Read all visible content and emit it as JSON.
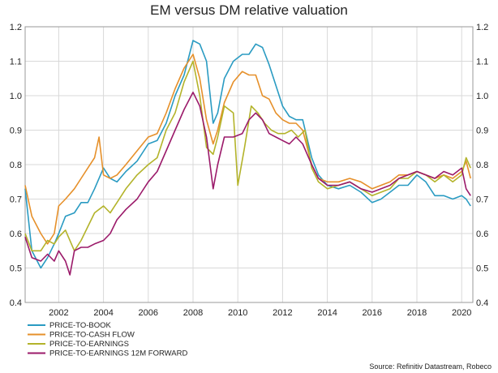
{
  "chart_data": {
    "type": "line",
    "title": "EM versus DM relative valuation",
    "xlabel": "",
    "ylabel": "",
    "xlim": [
      2000.5,
      2020.5
    ],
    "ylim": [
      0.4,
      1.2
    ],
    "x_ticks": [
      2002,
      2004,
      2006,
      2008,
      2010,
      2012,
      2014,
      2016,
      2018,
      2020
    ],
    "y_ticks": [
      0.4,
      0.5,
      0.6,
      0.7,
      0.8,
      0.9,
      1.0,
      1.1,
      1.2
    ],
    "y_axis_both_sides": true,
    "grid": true,
    "legend_position": "bottom-left",
    "source": "Source: Refinitiv Datastream, Robeco",
    "series": [
      {
        "name": "PRICE-TO-BOOK",
        "color": "#2a9bc2",
        "points": [
          [
            2000.5,
            0.73
          ],
          [
            2000.8,
            0.55
          ],
          [
            2001.2,
            0.5
          ],
          [
            2001.5,
            0.53
          ],
          [
            2001.8,
            0.57
          ],
          [
            2002.0,
            0.6
          ],
          [
            2002.3,
            0.65
          ],
          [
            2002.7,
            0.66
          ],
          [
            2003.0,
            0.69
          ],
          [
            2003.3,
            0.69
          ],
          [
            2003.6,
            0.73
          ],
          [
            2004.0,
            0.79
          ],
          [
            2004.3,
            0.76
          ],
          [
            2004.6,
            0.75
          ],
          [
            2005.0,
            0.78
          ],
          [
            2005.5,
            0.81
          ],
          [
            2006.0,
            0.86
          ],
          [
            2006.4,
            0.87
          ],
          [
            2006.8,
            0.92
          ],
          [
            2007.2,
            1.0
          ],
          [
            2007.6,
            1.06
          ],
          [
            2008.0,
            1.16
          ],
          [
            2008.3,
            1.15
          ],
          [
            2008.6,
            1.1
          ],
          [
            2008.9,
            0.92
          ],
          [
            2009.1,
            0.95
          ],
          [
            2009.4,
            1.05
          ],
          [
            2009.8,
            1.1
          ],
          [
            2010.2,
            1.12
          ],
          [
            2010.5,
            1.12
          ],
          [
            2010.8,
            1.15
          ],
          [
            2011.1,
            1.14
          ],
          [
            2011.4,
            1.09
          ],
          [
            2011.7,
            1.03
          ],
          [
            2012.0,
            0.97
          ],
          [
            2012.3,
            0.94
          ],
          [
            2012.6,
            0.93
          ],
          [
            2012.9,
            0.93
          ],
          [
            2013.3,
            0.82
          ],
          [
            2013.6,
            0.77
          ],
          [
            2014.0,
            0.74
          ],
          [
            2014.5,
            0.73
          ],
          [
            2015.0,
            0.74
          ],
          [
            2015.5,
            0.72
          ],
          [
            2016.0,
            0.69
          ],
          [
            2016.4,
            0.7
          ],
          [
            2016.8,
            0.72
          ],
          [
            2017.2,
            0.74
          ],
          [
            2017.6,
            0.74
          ],
          [
            2018.0,
            0.77
          ],
          [
            2018.4,
            0.75
          ],
          [
            2018.8,
            0.71
          ],
          [
            2019.2,
            0.71
          ],
          [
            2019.6,
            0.7
          ],
          [
            2020.0,
            0.71
          ],
          [
            2020.2,
            0.7
          ],
          [
            2020.4,
            0.68
          ]
        ]
      },
      {
        "name": "PRICE-TO-CASH FLOW",
        "color": "#e6902a",
        "points": [
          [
            2000.5,
            0.74
          ],
          [
            2000.8,
            0.65
          ],
          [
            2001.2,
            0.6
          ],
          [
            2001.5,
            0.57
          ],
          [
            2001.8,
            0.6
          ],
          [
            2002.0,
            0.68
          ],
          [
            2002.3,
            0.7
          ],
          [
            2002.7,
            0.73
          ],
          [
            2003.0,
            0.76
          ],
          [
            2003.3,
            0.79
          ],
          [
            2003.6,
            0.82
          ],
          [
            2003.8,
            0.88
          ],
          [
            2004.0,
            0.77
          ],
          [
            2004.3,
            0.76
          ],
          [
            2004.6,
            0.77
          ],
          [
            2005.0,
            0.8
          ],
          [
            2005.5,
            0.84
          ],
          [
            2006.0,
            0.88
          ],
          [
            2006.4,
            0.89
          ],
          [
            2006.8,
            0.95
          ],
          [
            2007.2,
            1.02
          ],
          [
            2007.6,
            1.08
          ],
          [
            2008.0,
            1.12
          ],
          [
            2008.3,
            1.05
          ],
          [
            2008.6,
            0.93
          ],
          [
            2008.9,
            0.86
          ],
          [
            2009.1,
            0.9
          ],
          [
            2009.4,
            0.98
          ],
          [
            2009.8,
            1.04
          ],
          [
            2010.2,
            1.07
          ],
          [
            2010.5,
            1.06
          ],
          [
            2010.8,
            1.06
          ],
          [
            2011.1,
            1.0
          ],
          [
            2011.4,
            0.99
          ],
          [
            2011.7,
            0.95
          ],
          [
            2012.0,
            0.93
          ],
          [
            2012.3,
            0.92
          ],
          [
            2012.6,
            0.92
          ],
          [
            2012.9,
            0.9
          ],
          [
            2013.3,
            0.8
          ],
          [
            2013.6,
            0.76
          ],
          [
            2014.0,
            0.75
          ],
          [
            2014.5,
            0.75
          ],
          [
            2015.0,
            0.76
          ],
          [
            2015.5,
            0.75
          ],
          [
            2016.0,
            0.73
          ],
          [
            2016.4,
            0.74
          ],
          [
            2016.8,
            0.75
          ],
          [
            2017.2,
            0.77
          ],
          [
            2017.6,
            0.77
          ],
          [
            2018.0,
            0.78
          ],
          [
            2018.4,
            0.77
          ],
          [
            2018.8,
            0.76
          ],
          [
            2019.2,
            0.77
          ],
          [
            2019.6,
            0.76
          ],
          [
            2020.0,
            0.78
          ],
          [
            2020.2,
            0.81
          ],
          [
            2020.4,
            0.76
          ]
        ]
      },
      {
        "name": "PRICE-TO-EARNINGS",
        "color": "#b3b32a",
        "points": [
          [
            2000.5,
            0.6
          ],
          [
            2000.8,
            0.55
          ],
          [
            2001.2,
            0.55
          ],
          [
            2001.5,
            0.58
          ],
          [
            2001.8,
            0.57
          ],
          [
            2002.0,
            0.59
          ],
          [
            2002.3,
            0.61
          ],
          [
            2002.7,
            0.55
          ],
          [
            2003.0,
            0.58
          ],
          [
            2003.3,
            0.62
          ],
          [
            2003.6,
            0.66
          ],
          [
            2004.0,
            0.68
          ],
          [
            2004.3,
            0.66
          ],
          [
            2004.6,
            0.69
          ],
          [
            2005.0,
            0.73
          ],
          [
            2005.5,
            0.77
          ],
          [
            2006.0,
            0.8
          ],
          [
            2006.4,
            0.82
          ],
          [
            2006.8,
            0.9
          ],
          [
            2007.2,
            0.95
          ],
          [
            2007.6,
            1.04
          ],
          [
            2008.0,
            1.1
          ],
          [
            2008.3,
            1.0
          ],
          [
            2008.6,
            0.85
          ],
          [
            2008.9,
            0.83
          ],
          [
            2009.1,
            0.88
          ],
          [
            2009.4,
            0.97
          ],
          [
            2009.8,
            0.95
          ],
          [
            2010.0,
            0.74
          ],
          [
            2010.3,
            0.85
          ],
          [
            2010.6,
            0.97
          ],
          [
            2010.9,
            0.95
          ],
          [
            2011.2,
            0.92
          ],
          [
            2011.5,
            0.9
          ],
          [
            2011.8,
            0.89
          ],
          [
            2012.1,
            0.89
          ],
          [
            2012.4,
            0.9
          ],
          [
            2012.7,
            0.88
          ],
          [
            2013.0,
            0.9
          ],
          [
            2013.3,
            0.79
          ],
          [
            2013.6,
            0.75
          ],
          [
            2014.0,
            0.73
          ],
          [
            2014.5,
            0.74
          ],
          [
            2015.0,
            0.75
          ],
          [
            2015.5,
            0.73
          ],
          [
            2016.0,
            0.71
          ],
          [
            2016.4,
            0.72
          ],
          [
            2016.8,
            0.73
          ],
          [
            2017.2,
            0.76
          ],
          [
            2017.6,
            0.76
          ],
          [
            2018.0,
            0.78
          ],
          [
            2018.4,
            0.77
          ],
          [
            2018.8,
            0.75
          ],
          [
            2019.2,
            0.77
          ],
          [
            2019.6,
            0.75
          ],
          [
            2020.0,
            0.77
          ],
          [
            2020.2,
            0.82
          ],
          [
            2020.4,
            0.79
          ]
        ]
      },
      {
        "name": "PRICE-TO-EARNINGS 12M FORWARD",
        "color": "#9b1a6a",
        "points": [
          [
            2000.5,
            0.59
          ],
          [
            2000.8,
            0.53
          ],
          [
            2001.2,
            0.52
          ],
          [
            2001.5,
            0.54
          ],
          [
            2001.8,
            0.52
          ],
          [
            2002.0,
            0.55
          ],
          [
            2002.3,
            0.52
          ],
          [
            2002.5,
            0.48
          ],
          [
            2002.7,
            0.55
          ],
          [
            2003.0,
            0.56
          ],
          [
            2003.3,
            0.56
          ],
          [
            2003.6,
            0.57
          ],
          [
            2004.0,
            0.58
          ],
          [
            2004.3,
            0.6
          ],
          [
            2004.6,
            0.64
          ],
          [
            2005.0,
            0.67
          ],
          [
            2005.5,
            0.7
          ],
          [
            2006.0,
            0.75
          ],
          [
            2006.4,
            0.78
          ],
          [
            2006.8,
            0.84
          ],
          [
            2007.2,
            0.9
          ],
          [
            2007.6,
            0.96
          ],
          [
            2008.0,
            1.01
          ],
          [
            2008.3,
            0.97
          ],
          [
            2008.6,
            0.88
          ],
          [
            2008.9,
            0.73
          ],
          [
            2009.1,
            0.8
          ],
          [
            2009.4,
            0.88
          ],
          [
            2009.8,
            0.88
          ],
          [
            2010.2,
            0.89
          ],
          [
            2010.5,
            0.93
          ],
          [
            2010.8,
            0.95
          ],
          [
            2011.1,
            0.93
          ],
          [
            2011.4,
            0.89
          ],
          [
            2011.7,
            0.88
          ],
          [
            2012.0,
            0.87
          ],
          [
            2012.3,
            0.86
          ],
          [
            2012.6,
            0.88
          ],
          [
            2012.9,
            0.86
          ],
          [
            2013.3,
            0.8
          ],
          [
            2013.6,
            0.76
          ],
          [
            2014.0,
            0.74
          ],
          [
            2014.5,
            0.74
          ],
          [
            2015.0,
            0.75
          ],
          [
            2015.5,
            0.73
          ],
          [
            2016.0,
            0.72
          ],
          [
            2016.4,
            0.73
          ],
          [
            2016.8,
            0.74
          ],
          [
            2017.2,
            0.76
          ],
          [
            2017.6,
            0.77
          ],
          [
            2018.0,
            0.78
          ],
          [
            2018.4,
            0.77
          ],
          [
            2018.8,
            0.76
          ],
          [
            2019.2,
            0.78
          ],
          [
            2019.6,
            0.77
          ],
          [
            2020.0,
            0.79
          ],
          [
            2020.2,
            0.73
          ],
          [
            2020.4,
            0.71
          ]
        ]
      }
    ]
  }
}
